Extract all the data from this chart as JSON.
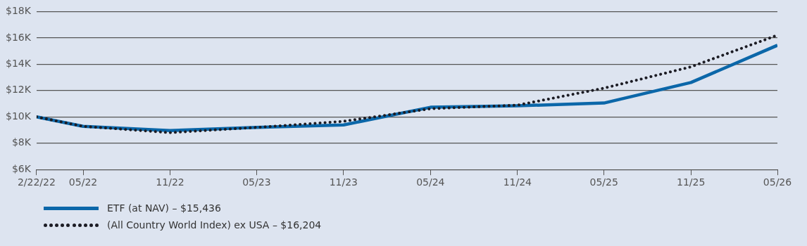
{
  "chart_data": {
    "type": "line",
    "x": [
      "2022-02-22",
      "2022-05-31",
      "2022-11-30",
      "2023-05-31",
      "2023-11-30",
      "2024-05-31",
      "2024-11-30",
      "2025-05-31",
      "2025-11-30",
      "2026-05-31"
    ],
    "series": [
      {
        "name": "ETF (at NAV) – $15,436",
        "color": "#0b67a9",
        "line_style": "solid",
        "values": [
          10000,
          9280,
          8960,
          9200,
          9390,
          10730,
          10840,
          11050,
          12610,
          15436
        ]
      },
      {
        "name": "(All Country World Index) ex USA – $16,204",
        "color": "#1c1c24",
        "line_style": "dotted",
        "values": [
          10000,
          9280,
          8800,
          9200,
          9660,
          10620,
          10890,
          12180,
          13800,
          16204
        ]
      }
    ],
    "xlim": [
      "2022-02-22",
      "2026-05-31"
    ],
    "xticks": [
      {
        "value": "2022-02-22",
        "label": "2/22/22"
      },
      {
        "value": "2022-05-31",
        "label": "05/22"
      },
      {
        "value": "2022-11-30",
        "label": "11/22"
      },
      {
        "value": "2023-05-31",
        "label": "05/23"
      },
      {
        "value": "2023-11-30",
        "label": "11/23"
      },
      {
        "value": "2024-05-31",
        "label": "05/24"
      },
      {
        "value": "2024-11-30",
        "label": "11/24"
      },
      {
        "value": "2025-05-31",
        "label": "05/25"
      },
      {
        "value": "2025-11-30",
        "label": "11/25"
      },
      {
        "value": "2026-05-31",
        "label": "05/26"
      }
    ],
    "ylim": [
      6000,
      18000
    ],
    "yticks": [
      {
        "value": 6000,
        "label": "$6K"
      },
      {
        "value": 8000,
        "label": "$8K"
      },
      {
        "value": 10000,
        "label": "$10K"
      },
      {
        "value": 12000,
        "label": "$12K"
      },
      {
        "value": 14000,
        "label": "$14K"
      },
      {
        "value": 16000,
        "label": "$16K"
      },
      {
        "value": 18000,
        "label": "$18K"
      }
    ],
    "grid": "y",
    "legend": "bottom",
    "marker": "none"
  }
}
